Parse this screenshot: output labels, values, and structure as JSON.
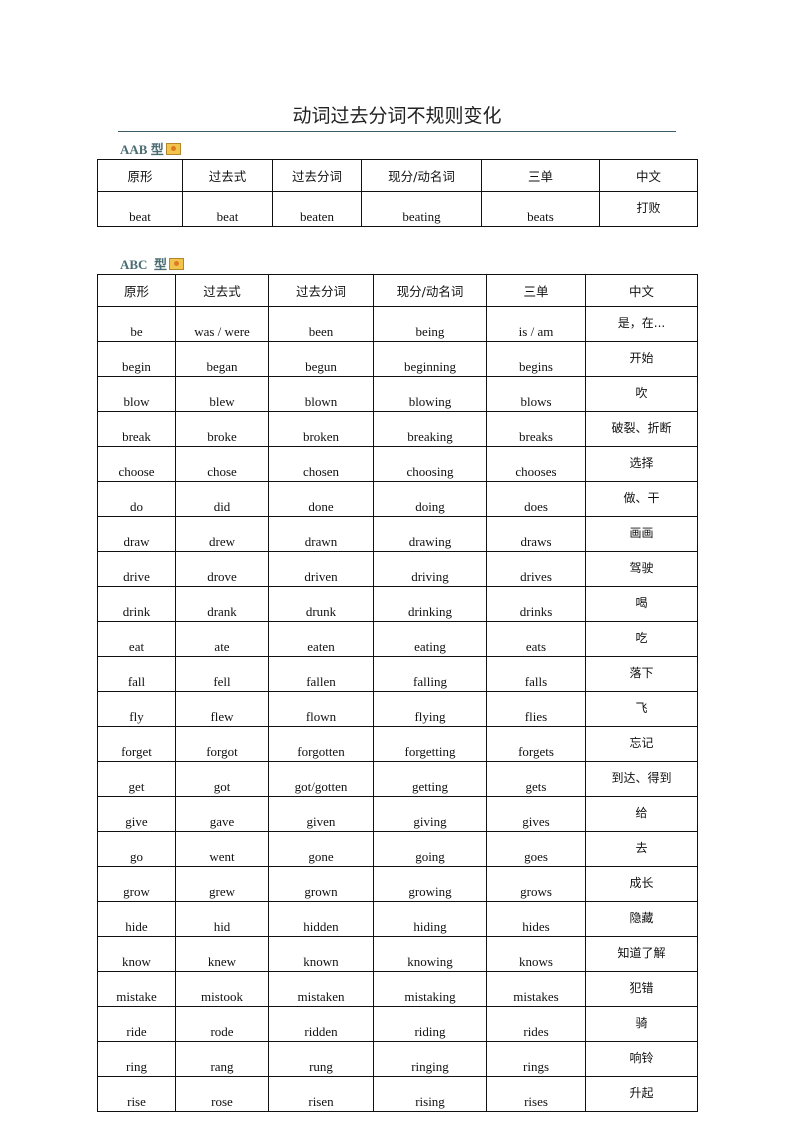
{
  "title": "动词过去分词不规则变化",
  "headers": [
    "原形",
    "过去式",
    "过去分词",
    "现分/动名词",
    "三单",
    "中文"
  ],
  "aab": {
    "label": "AAB 型",
    "rows": [
      [
        "beat",
        "beat",
        "beaten",
        "beating",
        "beats",
        "打败"
      ]
    ]
  },
  "abc": {
    "label": "ABC  型",
    "rows": [
      [
        "be",
        "was / were",
        "been",
        "being",
        "is / am",
        "是，在..."
      ],
      [
        "begin",
        "began",
        "begun",
        "beginning",
        "begins",
        "开始"
      ],
      [
        "blow",
        "blew",
        "blown",
        "blowing",
        "blows",
        "吹"
      ],
      [
        "break",
        "broke",
        "broken",
        "breaking",
        "breaks",
        "破裂、折断"
      ],
      [
        "choose",
        "chose",
        "chosen",
        "choosing",
        "chooses",
        "选择"
      ],
      [
        "do",
        "did",
        "done",
        "doing",
        "does",
        "做、干"
      ],
      [
        "draw",
        "drew",
        "drawn",
        "drawing",
        "draws",
        "画画"
      ],
      [
        "drive",
        "drove",
        "driven",
        "driving",
        "drives",
        "驾驶"
      ],
      [
        "drink",
        "drank",
        "drunk",
        "drinking",
        "drinks",
        "喝"
      ],
      [
        "eat",
        "ate",
        "eaten",
        "eating",
        "eats",
        "吃"
      ],
      [
        "fall",
        "fell",
        "fallen",
        "falling",
        "falls",
        "落下"
      ],
      [
        "fly",
        "flew",
        "flown",
        "flying",
        "flies",
        "飞"
      ],
      [
        "forget",
        "forgot",
        "forgotten",
        "forgetting",
        "forgets",
        "忘记"
      ],
      [
        "get",
        "got",
        "got/gotten",
        "getting",
        "gets",
        "到达、得到"
      ],
      [
        "give",
        "gave",
        "given",
        "giving",
        "gives",
        "给"
      ],
      [
        "go",
        "went",
        "gone",
        "going",
        "goes",
        "去"
      ],
      [
        "grow",
        "grew",
        "grown",
        "growing",
        "grows",
        "成长"
      ],
      [
        "hide",
        "hid",
        "hidden",
        "hiding",
        "hides",
        "隐藏"
      ],
      [
        "know",
        "knew",
        "known",
        "knowing",
        "knows",
        "知道了解"
      ],
      [
        "mistake",
        "mistook",
        "mistaken",
        "mistaking",
        "mistakes",
        "犯错"
      ],
      [
        "ride",
        "rode",
        "ridden",
        "riding",
        "rides",
        "骑"
      ],
      [
        "ring",
        "rang",
        "rung",
        "ringing",
        "rings",
        "响铃"
      ],
      [
        "rise",
        "rose",
        "risen",
        "rising",
        "rises",
        "升起"
      ]
    ]
  }
}
